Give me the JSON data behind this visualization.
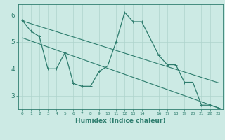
{
  "xlabel": "Humidex (Indice chaleur)",
  "ylabel": "",
  "x": [
    0,
    1,
    2,
    3,
    4,
    5,
    6,
    7,
    8,
    9,
    10,
    11,
    12,
    13,
    14,
    16,
    17,
    18,
    19,
    20,
    21,
    22,
    23
  ],
  "y_main": [
    5.8,
    5.4,
    5.2,
    4.0,
    4.0,
    4.6,
    3.45,
    3.35,
    3.35,
    3.9,
    4.1,
    5.0,
    6.1,
    5.75,
    5.75,
    4.5,
    4.15,
    4.15,
    3.5,
    3.5,
    2.65,
    2.65,
    2.55
  ],
  "line_color": "#2e7d6e",
  "bg_color": "#cceae4",
  "grid_color": "#aed4cc",
  "ylim": [
    2.5,
    6.4
  ],
  "xlim": [
    -0.5,
    23.5
  ],
  "xticks": [
    0,
    1,
    2,
    3,
    4,
    5,
    6,
    7,
    8,
    9,
    10,
    11,
    12,
    13,
    14,
    16,
    17,
    18,
    19,
    20,
    21,
    22,
    23
  ],
  "yticks": [
    3,
    4,
    5,
    6
  ],
  "trend_y1_start": 5.78,
  "trend_y1_end": 3.48,
  "trend_y2_start": 5.15,
  "trend_y2_end": 2.55,
  "marker_size": 2.5,
  "line_width": 0.9
}
